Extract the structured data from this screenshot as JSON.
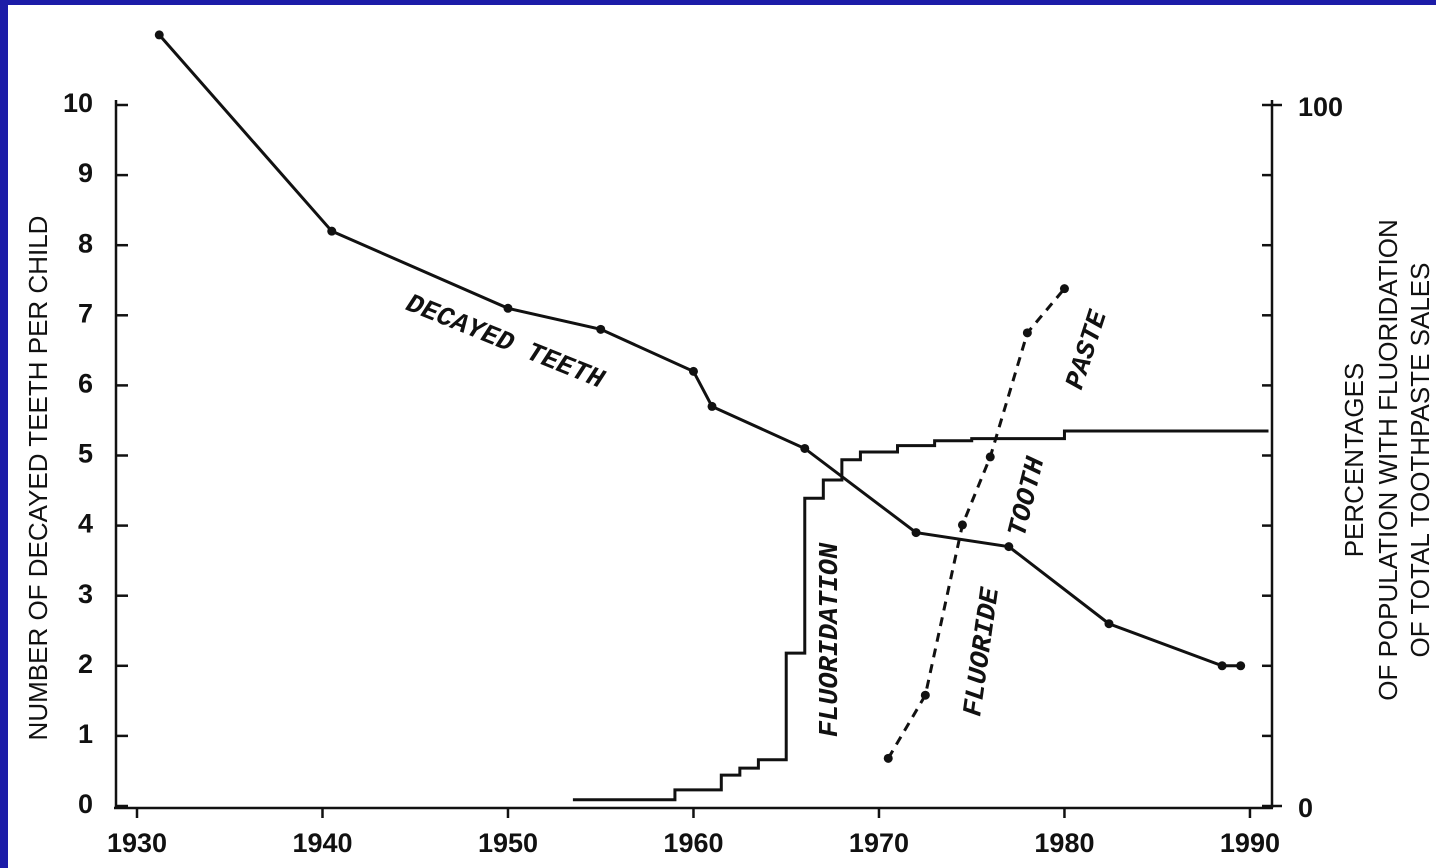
{
  "chart_data": {
    "type": "line",
    "ylabel": "NUMBER OF DECAYED TEETH PER CHILD",
    "y2label": [
      "PERCENTAGES",
      "OF POPULATION WITH FLUORIDATION",
      "OF TOTAL TOOTHPASTE SALES"
    ],
    "xlim": [
      1929,
      1991
    ],
    "xticks": [
      1930,
      1940,
      1950,
      1960,
      1970,
      1980,
      1990
    ],
    "ylim": [
      0,
      10
    ],
    "yticks": [
      0,
      1,
      2,
      3,
      4,
      5,
      6,
      7,
      8,
      9,
      10
    ],
    "y2lim": [
      0,
      100
    ],
    "y2ticks": [
      0,
      100
    ],
    "series": [
      {
        "color": "#111111",
        "markers": true,
        "dash": false,
        "step": false,
        "x": [
          1931.2,
          1940.5,
          1950,
          1955,
          1960,
          1961,
          1966,
          1972,
          1977,
          1982.4,
          1988.5,
          1989.5
        ],
        "values": [
          11.0,
          8.2,
          7.1,
          6.8,
          6.2,
          5.7,
          5.1,
          3.9,
          3.7,
          2.6,
          2.0,
          2.0
        ]
      },
      {
        "color": "#111111",
        "axis": "y2",
        "markers": false,
        "dash": false,
        "step": true,
        "x": [
          1953.5,
          1959,
          1961.5,
          1962.5,
          1963.5,
          1965,
          1966,
          1967,
          1968,
          1969,
          1971,
          1973,
          1975,
          1980,
          1990,
          1991
        ],
        "values": [
          0.9,
          2.3,
          4.4,
          5.4,
          6.6,
          21.8,
          43.9,
          46.5,
          49.4,
          50.5,
          51.4,
          52.1,
          52.4,
          53.5,
          53.5,
          53.5
        ]
      },
      {
        "color": "#111111",
        "axis": "y2",
        "markers": true,
        "dash": true,
        "step": false,
        "x": [
          1970.5,
          1972.5,
          1974.5,
          1976,
          1978,
          1980
        ],
        "values": [
          6.8,
          15.8,
          40.1,
          49.8,
          67.5,
          73.8
        ]
      }
    ],
    "annotations": [
      "DECAYED TEETH",
      "FLUORIDATION",
      "FLUORIDE",
      "TOOTH",
      "PASTE"
    ]
  }
}
